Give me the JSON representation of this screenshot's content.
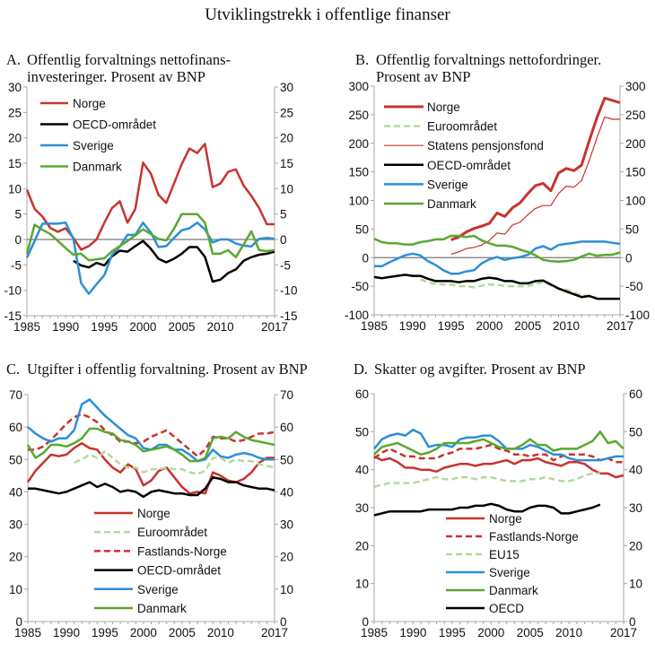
{
  "title": "Utviklingstrekk i offentlige finanser",
  "chart_data": [
    {
      "id": "A",
      "type": "line",
      "label": "A.",
      "title_lines": [
        "Offentlig forvaltnings nettofinans-",
        "investeringer. Prosent av BNP"
      ],
      "xlabel": "",
      "ylabel": "",
      "xlim": [
        1985,
        2017
      ],
      "x_ticks": [
        1985,
        1990,
        1995,
        2000,
        2005,
        2010,
        2017
      ],
      "ylim": [
        -15,
        30
      ],
      "y_ticks": [
        -15,
        -10,
        -5,
        0,
        5,
        10,
        15,
        20,
        25,
        30
      ],
      "zero_line": true,
      "legend": "top-left",
      "series": [
        {
          "name": "Norge",
          "color": "#c8332f",
          "dashed": false,
          "start": 1985,
          "values": [
            9.8,
            6,
            4.5,
            2.3,
            1.5,
            2.2,
            0.3,
            -2,
            -1.3,
            0,
            3.3,
            6.2,
            7.5,
            3.3,
            6,
            15.1,
            13,
            8.8,
            7.2,
            11,
            14.8,
            17.9,
            17,
            18.8,
            10.3,
            11,
            13.3,
            13.8,
            10.6,
            8.6,
            6.2,
            3,
            3
          ]
        },
        {
          "name": "OECD-området",
          "color": "#000000",
          "dashed": false,
          "start": 1991,
          "values": [
            -4.2,
            -5.1,
            -5.5,
            -4.6,
            -5.1,
            -3.3,
            -2.2,
            -2.4,
            -1.3,
            -0.3,
            -1.8,
            -3.8,
            -4.5,
            -3.8,
            -2.8,
            -1.5,
            -1.5,
            -3.4,
            -8.3,
            -7.9,
            -6.6,
            -5.9,
            -4.2,
            -3.5,
            -3,
            -2.8,
            -2.4
          ]
        },
        {
          "name": "Sverige",
          "color": "#2b8fd8",
          "dashed": false,
          "start": 1985,
          "values": [
            -3.6,
            -0.3,
            3.1,
            3.1,
            3.1,
            3.3,
            0.1,
            -8.6,
            -10.7,
            -8.8,
            -7,
            -3,
            -1.4,
            0.9,
            0.9,
            3.3,
            1.4,
            -1.5,
            -1.3,
            0.3,
            1.8,
            2.2,
            3.3,
            2,
            -0.6,
            0,
            0,
            -0.8,
            -1.2,
            -1.4,
            0.1,
            0.3,
            0.1
          ]
        },
        {
          "name": "Danmark",
          "color": "#5aa830",
          "dashed": false,
          "start": 1985,
          "values": [
            -2.8,
            2.9,
            1.9,
            1.1,
            -0.3,
            -1.7,
            -3,
            -2.8,
            -4.1,
            -3.9,
            -3.7,
            -2.3,
            -1.3,
            -0.3,
            0.8,
            2,
            1.1,
            0.1,
            -0.2,
            2.1,
            5,
            5,
            5,
            3.3,
            -2.8,
            -2.8,
            -2.1,
            -3.5,
            -1,
            1.6,
            -2.1,
            -2.3,
            -2.1
          ]
        }
      ]
    },
    {
      "id": "B",
      "type": "line",
      "label": "B.",
      "title_lines": [
        "Offentlig forvaltnings nettofordringer.",
        "Prosent av BNP"
      ],
      "xlabel": "",
      "ylabel": "",
      "xlim": [
        1985,
        2017
      ],
      "x_ticks": [
        1985,
        1990,
        1995,
        2000,
        2005,
        2010,
        2017
      ],
      "ylim": [
        -100,
        300
      ],
      "y_ticks": [
        -100,
        -50,
        0,
        50,
        100,
        150,
        200,
        250,
        300
      ],
      "zero_line": true,
      "legend": "top-left",
      "series": [
        {
          "name": "Norge",
          "color": "#c8332f",
          "dashed": false,
          "width": 3,
          "start": 1995,
          "values": [
            31,
            36,
            45,
            51,
            55,
            60,
            78,
            72,
            87,
            96,
            112,
            126,
            130,
            117,
            148,
            156,
            152,
            162,
            205,
            245,
            279,
            275,
            271
          ]
        },
        {
          "name": "Euroområdet",
          "color": "#b5d99c",
          "dashed": true,
          "start": 1991,
          "values": [
            -38,
            -43,
            -46,
            -47,
            -47,
            -50,
            -50,
            -52,
            -49,
            -47,
            -47,
            -50,
            -50,
            -50,
            -50,
            -46,
            -43,
            -48,
            -55,
            -56,
            -61,
            -66,
            -67,
            -70
          ]
        },
        {
          "name": "Statens pensjonsfond",
          "color": "#c8332f",
          "dashed": false,
          "width": 1.2,
          "start": 1995,
          "values": [
            6,
            10,
            16,
            18,
            22,
            30,
            43,
            41,
            57,
            62,
            75,
            86,
            91,
            91,
            112,
            125,
            123,
            135,
            170,
            210,
            246,
            242,
            242
          ]
        },
        {
          "name": "OECD-området",
          "color": "#000000",
          "dashed": false,
          "start": 1985,
          "values": [
            -34,
            -36,
            -34,
            -32,
            -30,
            -32,
            -32,
            -37,
            -41,
            -41,
            -41,
            -43,
            -41,
            -41,
            -37,
            -35,
            -37,
            -41,
            -41,
            -45,
            -45,
            -41,
            -40,
            -47,
            -54,
            -59,
            -64,
            -69,
            -67,
            -72,
            -72,
            -72,
            -72
          ]
        },
        {
          "name": "Sverige",
          "color": "#2b8fd8",
          "dashed": false,
          "start": 1985,
          "values": [
            -15,
            -15,
            -8,
            -2,
            4,
            7,
            4,
            -6,
            -13,
            -22,
            -28,
            -28,
            -24,
            -22,
            -10,
            -3,
            1,
            -4,
            -1,
            1,
            5,
            16,
            20,
            14,
            22,
            24,
            26,
            28,
            28,
            28,
            28,
            26,
            24
          ]
        },
        {
          "name": "Danmark",
          "color": "#5aa830",
          "dashed": false,
          "start": 1985,
          "values": [
            33,
            27,
            25,
            25,
            23,
            23,
            27,
            29,
            32,
            32,
            38,
            38,
            36,
            38,
            30,
            25,
            21,
            21,
            19,
            14,
            10,
            4,
            -4,
            -6,
            -7,
            -6,
            -4,
            2,
            7,
            3,
            5,
            5,
            9
          ]
        }
      ]
    },
    {
      "id": "C",
      "type": "line",
      "label": "C.",
      "title_lines": [
        "Utgifter i offentlig forvaltning. Prosent av BNP"
      ],
      "xlabel": "",
      "ylabel": "",
      "xlim": [
        1985,
        2017
      ],
      "x_ticks": [
        1985,
        1990,
        1995,
        2000,
        2005,
        2010,
        2017
      ],
      "ylim": [
        0,
        70
      ],
      "y_ticks": [
        0,
        10,
        20,
        30,
        40,
        50,
        60,
        70
      ],
      "zero_line": false,
      "legend": "bottom-center",
      "series": [
        {
          "name": "Norge",
          "color": "#c8332f",
          "dashed": false,
          "start": 1985,
          "values": [
            43,
            46.5,
            49,
            51.5,
            51,
            51.5,
            53.5,
            55,
            53.5,
            53,
            50,
            47.5,
            46,
            48.5,
            47,
            42,
            43.5,
            46.5,
            47.5,
            44.5,
            41.5,
            39.5,
            40,
            39.5,
            46,
            45,
            43.5,
            43,
            44,
            46,
            49,
            50.5,
            50.5
          ]
        },
        {
          "name": "Euroområdet",
          "color": "#b5d99c",
          "dashed": true,
          "start": 1991,
          "values": [
            49,
            50,
            51.5,
            50.5,
            52.5,
            50.5,
            48.5,
            47.5,
            47.5,
            46,
            47,
            47,
            47.5,
            47,
            47,
            46,
            45.5,
            46.5,
            50.5,
            50.5,
            49,
            50,
            49.5,
            49.5,
            48.5,
            48,
            47.5
          ]
        },
        {
          "name": "Fastlands-Norge",
          "color": "#c8332f",
          "dashed": true,
          "start": 1985,
          "values": [
            53,
            53,
            54,
            56,
            58.5,
            61,
            63,
            64,
            63,
            61.5,
            59,
            57.5,
            55.5,
            55.5,
            55,
            55.5,
            57,
            58,
            59,
            57,
            55,
            53,
            51,
            53,
            57,
            56.5,
            56.5,
            55.5,
            56,
            57,
            58,
            58,
            58.5
          ]
        },
        {
          "name": "OECD-området",
          "color": "#000000",
          "dashed": false,
          "start": 1985,
          "values": [
            41,
            41,
            40.5,
            40,
            39.5,
            40,
            41,
            42,
            43,
            41.5,
            42.5,
            41.5,
            40,
            40.5,
            40,
            38.5,
            40,
            40.5,
            40,
            39.5,
            39.5,
            39,
            39,
            41,
            44.5,
            44,
            43,
            43,
            42,
            41.5,
            41,
            41,
            40.5
          ]
        },
        {
          "name": "Sverige",
          "color": "#2b8fd8",
          "dashed": false,
          "start": 1985,
          "values": [
            60,
            58,
            56.5,
            55.5,
            56.5,
            56.5,
            59,
            67,
            68.5,
            66,
            63.5,
            61.5,
            59.5,
            57.5,
            56.5,
            53.5,
            53,
            54.5,
            54.5,
            53,
            53,
            51.5,
            49.5,
            50,
            53,
            51,
            50.5,
            51.5,
            52,
            51.5,
            50.5,
            50,
            50
          ]
        },
        {
          "name": "Danmark",
          "color": "#5aa830",
          "dashed": false,
          "start": 1985,
          "values": [
            54.5,
            50.5,
            52,
            54.5,
            54.5,
            54,
            55,
            56.5,
            59.5,
            59.5,
            58.5,
            58,
            56,
            55.5,
            54.5,
            52.5,
            53,
            53.5,
            54,
            53,
            51.5,
            49.5,
            49.5,
            50.5,
            56.5,
            57,
            56.5,
            58.5,
            57,
            56,
            55.5,
            55,
            54.5
          ]
        }
      ]
    },
    {
      "id": "D",
      "type": "line",
      "label": "D.",
      "title_lines": [
        "Skatter og avgifter. Prosent av BNP"
      ],
      "xlabel": "",
      "ylabel": "",
      "xlim": [
        1985,
        2017
      ],
      "x_ticks": [
        1985,
        1990,
        1995,
        2000,
        2005,
        2010,
        2017
      ],
      "ylim": [
        0,
        60
      ],
      "y_ticks": [
        0,
        10,
        20,
        30,
        40,
        50,
        60
      ],
      "zero_line": false,
      "legend": "bottom-center",
      "series": [
        {
          "name": "Norge",
          "color": "#c8332f",
          "dashed": false,
          "start": 1985,
          "values": [
            43.5,
            42.5,
            43,
            42,
            40.5,
            40.5,
            40,
            40,
            39.5,
            40.5,
            41,
            41.5,
            41.5,
            41,
            41.5,
            41.5,
            42,
            42.5,
            41.5,
            42.5,
            42.5,
            43,
            42,
            41.5,
            41,
            42,
            42,
            41.5,
            40,
            39,
            39,
            38,
            38.5
          ]
        },
        {
          "name": "Fastlands-Norge",
          "color": "#c8332f",
          "dashed": true,
          "start": 1985,
          "values": [
            43,
            44.5,
            45.5,
            44.5,
            43.5,
            43.5,
            43,
            43,
            43,
            44,
            44.5,
            45.5,
            45.5,
            45.5,
            46,
            46.5,
            45.5,
            45,
            44,
            44,
            43.5,
            44,
            44,
            42.5,
            43.5,
            44,
            44,
            44,
            43.5,
            42.5,
            43,
            42,
            42
          ]
        },
        {
          "name": "EU15",
          "color": "#b5d99c",
          "dashed": true,
          "start": 1985,
          "values": [
            35.5,
            36,
            36.5,
            36.5,
            36.5,
            36.5,
            37,
            37.5,
            38,
            37.5,
            37.5,
            38,
            38,
            37.5,
            38,
            38,
            37.5,
            37,
            37,
            37,
            37.5,
            37.5,
            38,
            37.5,
            37,
            37,
            37.5,
            38.5,
            39,
            39
          ]
        },
        {
          "name": "Sverige",
          "color": "#2b8fd8",
          "dashed": false,
          "start": 1985,
          "values": [
            45.5,
            48,
            49,
            49.5,
            49,
            50.5,
            49.5,
            46,
            46.5,
            46.5,
            46,
            48,
            48.5,
            48.5,
            49,
            49,
            47.5,
            45.5,
            45.5,
            45.5,
            46.5,
            46,
            45,
            44,
            44,
            43,
            42.5,
            42.5,
            42.5,
            42.5,
            43,
            43.5,
            43.5
          ]
        },
        {
          "name": "Danmark",
          "color": "#5aa830",
          "dashed": false,
          "start": 1985,
          "values": [
            44,
            46,
            46.5,
            47,
            46,
            45,
            44,
            44.5,
            45.5,
            47,
            47,
            47,
            47,
            47.5,
            48,
            47,
            46,
            45.5,
            45.5,
            46.5,
            48,
            46.5,
            46.5,
            45,
            45.5,
            45.5,
            45.5,
            46.5,
            47.5,
            50,
            47,
            47.5,
            45.5
          ]
        },
        {
          "name": "OECD",
          "color": "#000000",
          "dashed": false,
          "start": 1985,
          "values": [
            28,
            28.5,
            29,
            29,
            29,
            29,
            29,
            29.5,
            29.5,
            29.5,
            29.5,
            30,
            30,
            30.5,
            30.5,
            31,
            30.5,
            29.5,
            29,
            29,
            30,
            30.5,
            30.5,
            30,
            28.5,
            28.5,
            29,
            29.5,
            30,
            30.8
          ]
        }
      ]
    }
  ]
}
